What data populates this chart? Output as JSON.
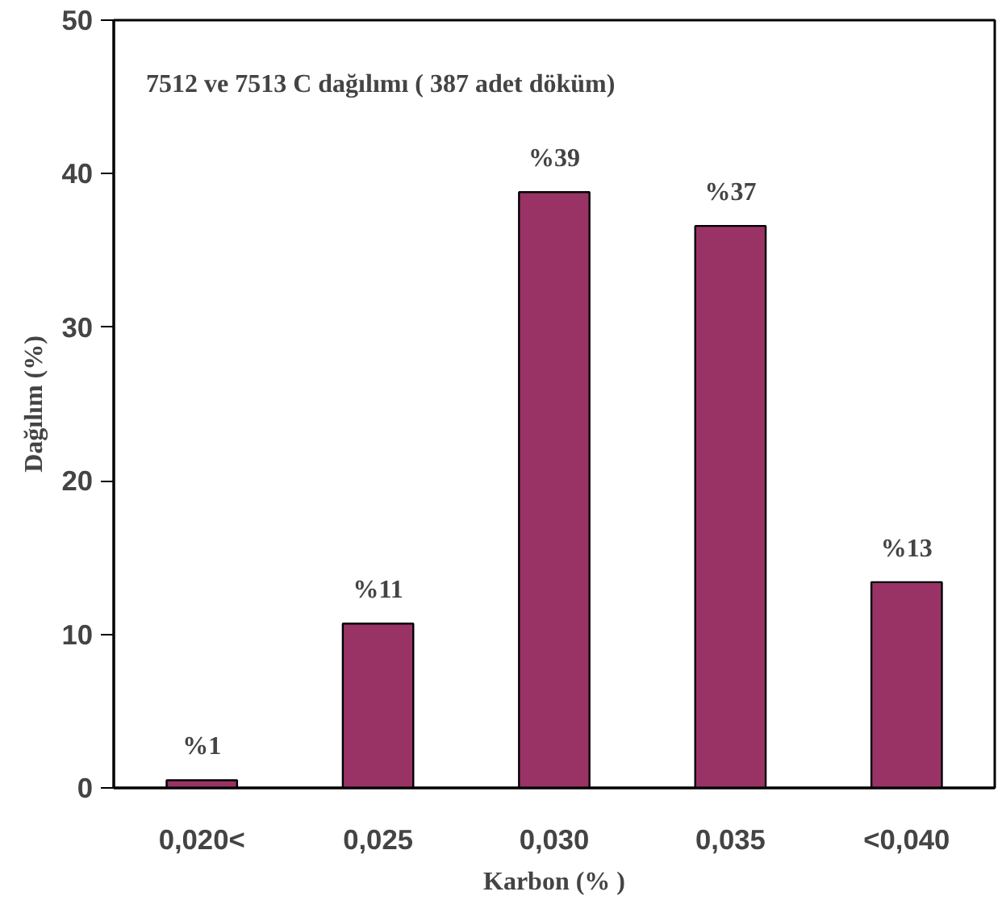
{
  "chart_data": {
    "type": "bar",
    "title": "7512 ve 7513 C dağılımı ( 387 adet döküm)",
    "xlabel": "Karbon (% )",
    "ylabel": "Dağılım (%)",
    "categories": [
      "0,020<",
      "0,025",
      "0,030",
      "0,035",
      "<0,040"
    ],
    "values": [
      0.5,
      10.7,
      38.8,
      36.6,
      13.4
    ],
    "value_labels": [
      "%1",
      "%11",
      "%39",
      "%37",
      "%13"
    ],
    "color": "#993366",
    "ylim": [
      0,
      50
    ],
    "yticks": [
      0,
      10,
      20,
      30,
      40,
      50
    ],
    "grid": false
  }
}
